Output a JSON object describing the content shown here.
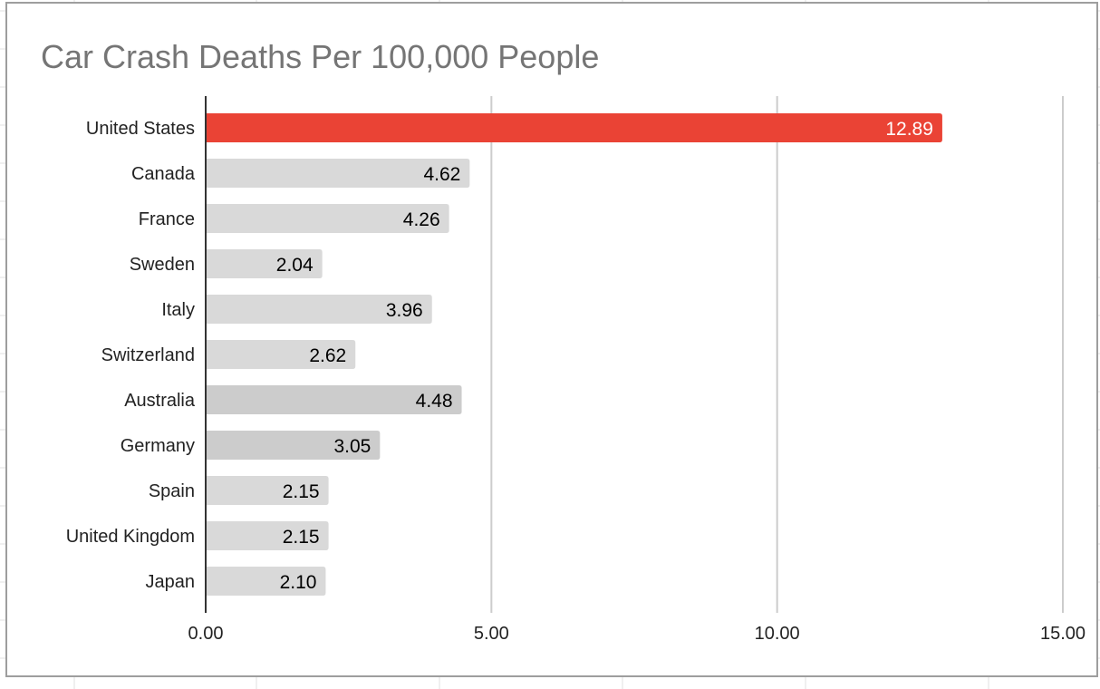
{
  "chart_data": {
    "type": "bar",
    "orientation": "horizontal",
    "title": "Car Crash Deaths Per 100,000 People",
    "xlabel": "",
    "ylabel": "",
    "categories": [
      "United States",
      "Canada",
      "France",
      "Sweden",
      "Italy",
      "Switzerland",
      "Australia",
      "Germany",
      "Spain",
      "United Kingdom",
      "Japan"
    ],
    "values": [
      12.89,
      4.62,
      4.26,
      2.04,
      3.96,
      2.62,
      4.48,
      3.05,
      2.15,
      2.15,
      2.1
    ],
    "value_labels": [
      "12.89",
      "4.62",
      "4.26",
      "2.04",
      "3.96",
      "2.62",
      "4.48",
      "3.05",
      "2.15",
      "2.15",
      "2.10"
    ],
    "bar_colors": [
      "#ea4335",
      "#d9d9d9",
      "#d9d9d9",
      "#d9d9d9",
      "#d9d9d9",
      "#d9d9d9",
      "#cccccc",
      "#cccccc",
      "#d9d9d9",
      "#d9d9d9",
      "#d9d9d9"
    ],
    "label_colors": [
      "#ffffff",
      "#000000",
      "#000000",
      "#000000",
      "#000000",
      "#000000",
      "#000000",
      "#000000",
      "#000000",
      "#000000",
      "#000000"
    ],
    "xlim": [
      0,
      15
    ],
    "x_ticks": [
      0,
      5,
      10,
      15
    ],
    "x_tick_labels": [
      "0.00",
      "5.00",
      "10.00",
      "15.00"
    ],
    "grid": true,
    "legend": "none"
  }
}
